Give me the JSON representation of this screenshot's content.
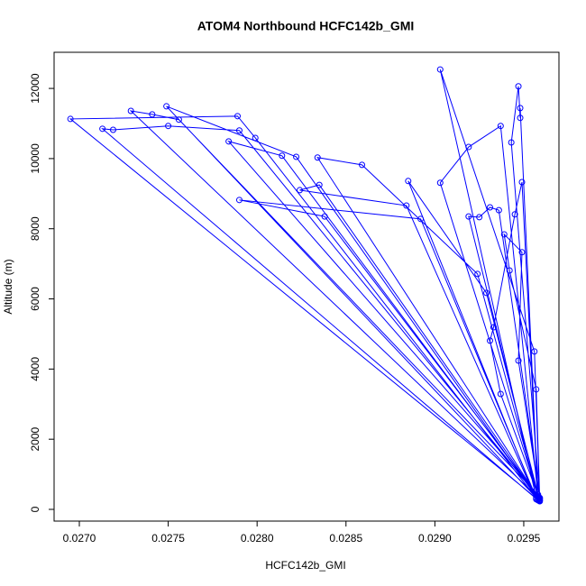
{
  "chart_data": {
    "type": "line",
    "title": "ATOM4 Northbound HCFC142b_GMI",
    "x_label": "HCFC142b_GMI",
    "y_label": "Altitude (m)",
    "color": "#0000ff",
    "markers": true,
    "x": [
      0.02959,
      0.02838,
      0.0279,
      0.02892,
      0.02957,
      0.02903,
      0.02956,
      0.02959,
      0.02749,
      0.02822,
      0.02958,
      0.02695,
      0.02789,
      0.02799,
      0.02958,
      0.02713,
      0.02719,
      0.0275,
      0.0279,
      0.02959,
      0.02729,
      0.02741,
      0.02756,
      0.02958,
      0.02784,
      0.02814,
      0.02959,
      0.02834,
      0.02859,
      0.02924,
      0.02958,
      0.02835,
      0.02824,
      0.02884,
      0.02957,
      0.02885,
      0.02929,
      0.02959,
      0.02903,
      0.02919,
      0.02937,
      0.02958,
      0.02919,
      0.02925,
      0.02931,
      0.02936,
      0.02959,
      0.02943,
      0.02947,
      0.02948,
      0.02948,
      0.02958,
      0.02949,
      0.02945,
      0.02933,
      0.02931,
      0.02937,
      0.02959,
      0.02957,
      0.02942,
      0.02939,
      0.02949,
      0.02947,
      0.02959
    ],
    "values": [
      310,
      8350,
      8820,
      8280,
      330,
      12540,
      4500,
      230,
      11490,
      10050,
      280,
      11130,
      11210,
      10590,
      260,
      10850,
      10820,
      10930,
      10800,
      300,
      11360,
      11260,
      11110,
      420,
      10490,
      10080,
      270,
      10030,
      9820,
      6710,
      350,
      9250,
      9100,
      8660,
      290,
      9360,
      6170,
      240,
      9310,
      10330,
      10930,
      380,
      8350,
      8330,
      8610,
      8530,
      320,
      10460,
      12060,
      11160,
      11440,
      300,
      9330,
      8410,
      5190,
      4810,
      3290,
      260,
      3420,
      6810,
      7840,
      7330,
      4240,
      330
    ],
    "xlim": [
      0.026858,
      0.029698
    ],
    "ylim": [
      -334,
      13030
    ],
    "xticks": [
      {
        "value": 0.027,
        "label": "0.0270"
      },
      0.0275,
      {
        "value": 0.028,
        "label": "0.0280"
      },
      0.0285,
      {
        "value": 0.029,
        "label": "0.0290"
      },
      0.0295
    ],
    "yticks": [
      0,
      2000,
      4000,
      6000,
      8000,
      10000,
      12000
    ]
  }
}
